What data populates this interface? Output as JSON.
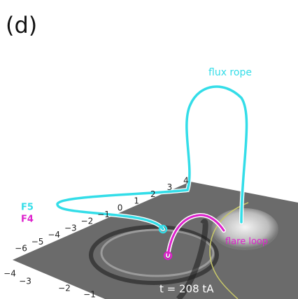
{
  "panel_label": "(d)",
  "labels": {
    "flux_rope": "flux rope",
    "f5": "F5",
    "f4": "F4",
    "flare_loop": "flare loop",
    "time": "t = 208 tA"
  },
  "back_axis_ticks": [
    "4",
    "3",
    "2",
    "1",
    "0",
    "−1",
    "−2",
    "−3",
    "−4",
    "−5",
    "−6"
  ],
  "front_axis_ticks": [
    "−4",
    "−3",
    "−2",
    "−1"
  ]
}
